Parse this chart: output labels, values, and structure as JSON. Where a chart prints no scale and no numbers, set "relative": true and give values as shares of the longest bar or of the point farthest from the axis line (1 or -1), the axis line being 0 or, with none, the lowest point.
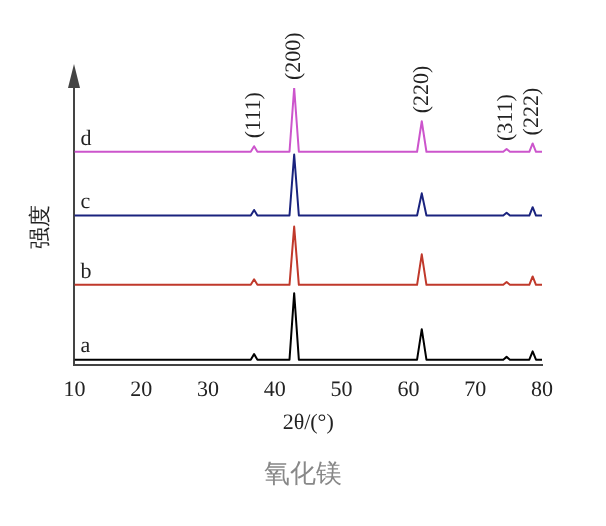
{
  "chart_data": {
    "type": "line",
    "relative": true,
    "xlabel": "2θ/(°)",
    "ylabel": "强度",
    "xlim": [
      10,
      80
    ],
    "xticks": [
      10,
      20,
      30,
      40,
      50,
      60,
      70,
      80
    ],
    "marker": "none",
    "line_style": "solid",
    "x": [
      10,
      20,
      30,
      35,
      36.4,
      36.9,
      37.4,
      40,
      42.2,
      42.9,
      43.6,
      50,
      61.3,
      62.0,
      62.7,
      70,
      74.2,
      74.7,
      75.2,
      78.1,
      78.6,
      79.1,
      80
    ],
    "series": [
      {
        "name": "a",
        "color": "#000000",
        "values": [
          0.02,
          0.02,
          0.02,
          0.02,
          0.02,
          0.04,
          0.02,
          0.02,
          0.02,
          0.26,
          0.02,
          0.02,
          0.02,
          0.13,
          0.02,
          0.02,
          0.02,
          0.03,
          0.02,
          0.02,
          0.05,
          0.02,
          0.02
        ]
      },
      {
        "name": "b",
        "color": "#c0392b",
        "values": [
          0.29,
          0.29,
          0.29,
          0.29,
          0.29,
          0.31,
          0.29,
          0.29,
          0.29,
          0.5,
          0.29,
          0.29,
          0.29,
          0.4,
          0.29,
          0.29,
          0.29,
          0.3,
          0.29,
          0.29,
          0.32,
          0.29,
          0.29
        ]
      },
      {
        "name": "c",
        "color": "#1a237e",
        "values": [
          0.54,
          0.54,
          0.54,
          0.54,
          0.54,
          0.56,
          0.54,
          0.54,
          0.54,
          0.76,
          0.54,
          0.54,
          0.54,
          0.62,
          0.54,
          0.54,
          0.54,
          0.55,
          0.54,
          0.54,
          0.57,
          0.54,
          0.54
        ]
      },
      {
        "name": "d",
        "color": "#cc55cc",
        "values": [
          0.77,
          0.77,
          0.77,
          0.77,
          0.77,
          0.79,
          0.77,
          0.77,
          0.77,
          1,
          0.77,
          0.77,
          0.77,
          0.88,
          0.77,
          0.77,
          0.77,
          0.78,
          0.77,
          0.77,
          0.8,
          0.77,
          0.77
        ]
      }
    ],
    "annotations": [
      {
        "text": "(111)",
        "x": 36.9,
        "y": 0.79
      },
      {
        "text": "(200)",
        "x": 42.9,
        "y": 1
      },
      {
        "text": "(220)",
        "x": 62.0,
        "y": 0.88
      },
      {
        "text": "(311)",
        "x": 74.7,
        "y": 0.78
      },
      {
        "text": "(222)",
        "x": 78.6,
        "y": 0.8
      },
      "氧化镁"
    ]
  }
}
